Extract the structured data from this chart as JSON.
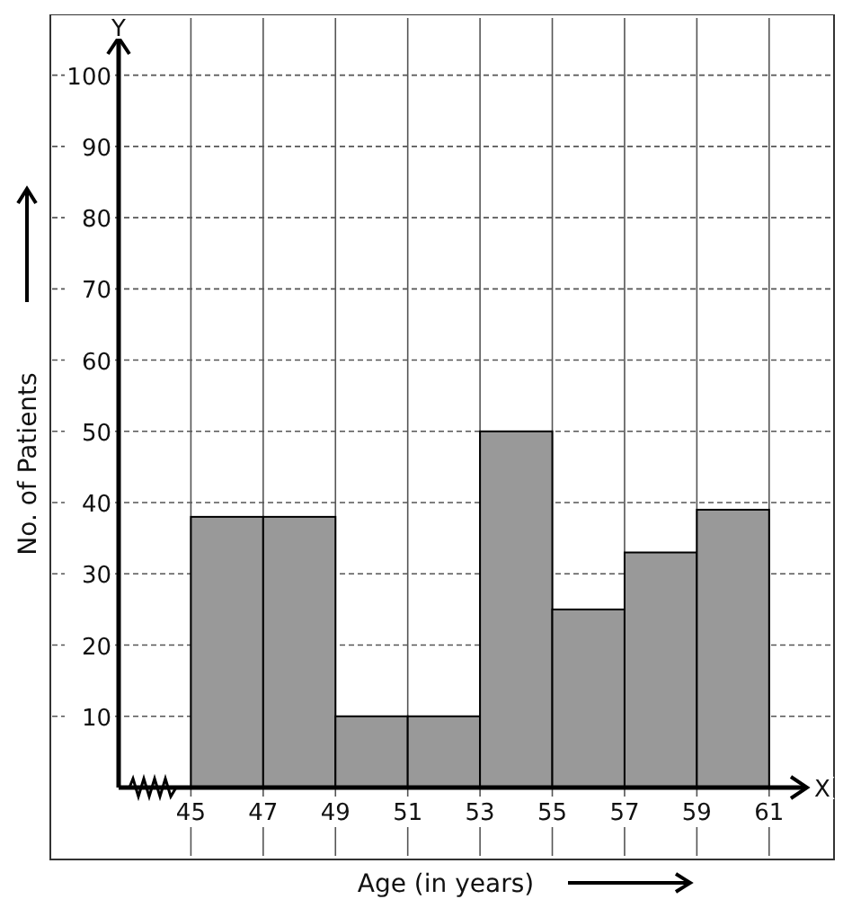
{
  "chart_data": {
    "type": "histogram",
    "xlabel": "Age (in years)",
    "ylabel": "No. of Patients",
    "bins": [
      45,
      47,
      49,
      51,
      53,
      55,
      57,
      59,
      61
    ],
    "values": [
      38,
      38,
      10,
      10,
      50,
      25,
      33,
      39
    ],
    "color": "#999999",
    "xlim": [
      43,
      62
    ],
    "xticks": [
      45,
      47,
      49,
      51,
      53,
      55,
      57,
      59,
      61
    ],
    "ylim": [
      0,
      105
    ],
    "yticks": [
      10,
      20,
      30,
      40,
      50,
      60,
      70,
      80,
      90,
      100
    ],
    "grid": true,
    "annotations": [
      "X",
      "Y"
    ]
  }
}
